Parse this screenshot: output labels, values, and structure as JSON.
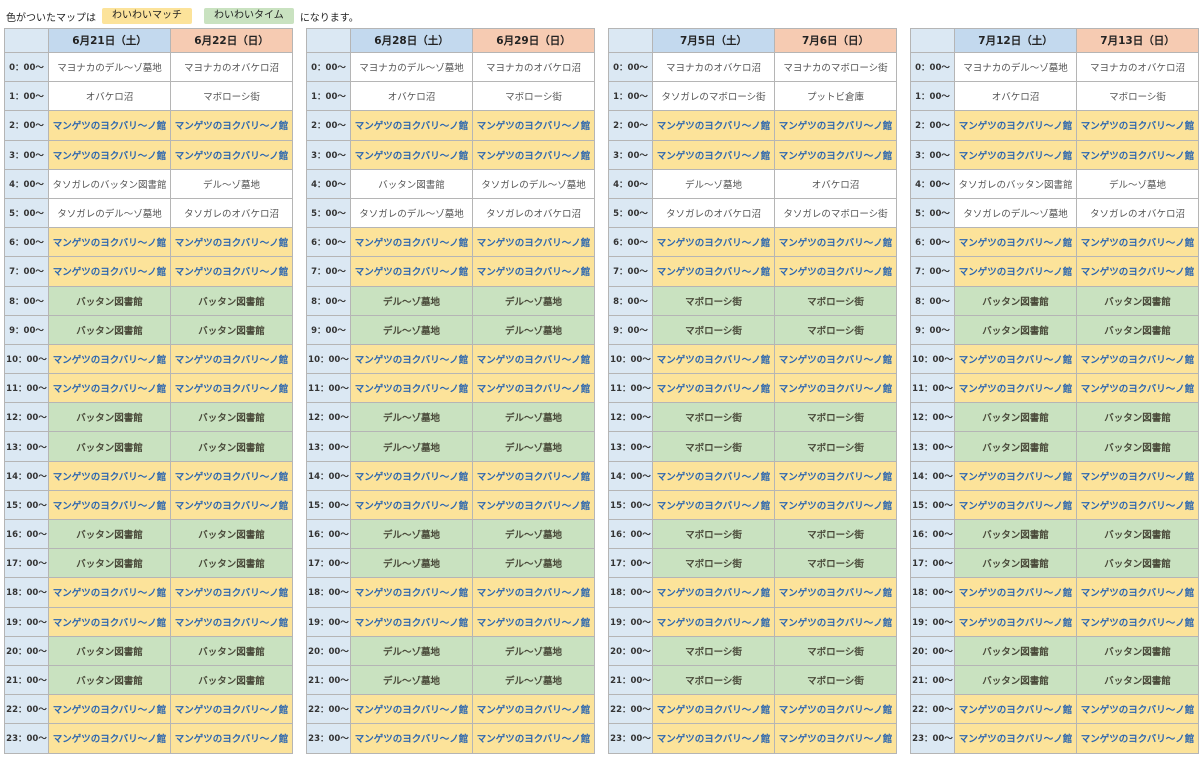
{
  "legend": {
    "prefix": "色がついたマップは",
    "match_label": "わいわいマッチ",
    "time_label": "わいわいタイム",
    "suffix": "になります。"
  },
  "colors": {
    "match": "#fce39a",
    "time": "#c9e2c0",
    "sat_header": "#c3d9ee",
    "sun_header": "#f6cbb2",
    "match_text": "#2b66b0"
  },
  "times": [
    "0：00～",
    "1：00～",
    "2：00～",
    "3：00～",
    "4：00～",
    "5：00～",
    "6：00～",
    "7：00～",
    "8：00～",
    "9：00～",
    "10：00～",
    "11：00～",
    "12：00～",
    "13：00～",
    "14：00～",
    "15：00～",
    "16：00～",
    "17：00～",
    "18：00～",
    "19：00～",
    "20：00～",
    "21：00～",
    "22：00～",
    "23：00～"
  ],
  "weeks": [
    {
      "days": [
        {
          "label": "6月21日（土）",
          "type": "sat",
          "cells": [
            {
              "text": "マヨナカのデル～ゾ墓地",
              "kind": "normal"
            },
            {
              "text": "オバケロ沼",
              "kind": "normal"
            },
            {
              "text": "マンゲツのヨクバリ～ノ館",
              "kind": "match"
            },
            {
              "text": "マンゲツのヨクバリ～ノ館",
              "kind": "match"
            },
            {
              "text": "タソガレのバッタン図書館",
              "kind": "normal"
            },
            {
              "text": "タソガレのデル～ゾ墓地",
              "kind": "normal"
            },
            {
              "text": "マンゲツのヨクバリ～ノ館",
              "kind": "match"
            },
            {
              "text": "マンゲツのヨクバリ～ノ館",
              "kind": "match"
            },
            {
              "text": "バッタン図書館",
              "kind": "time"
            },
            {
              "text": "バッタン図書館",
              "kind": "time"
            },
            {
              "text": "マンゲツのヨクバリ～ノ館",
              "kind": "match"
            },
            {
              "text": "マンゲツのヨクバリ～ノ館",
              "kind": "match"
            },
            {
              "text": "バッタン図書館",
              "kind": "time"
            },
            {
              "text": "バッタン図書館",
              "kind": "time"
            },
            {
              "text": "マンゲツのヨクバリ～ノ館",
              "kind": "match"
            },
            {
              "text": "マンゲツのヨクバリ～ノ館",
              "kind": "match"
            },
            {
              "text": "バッタン図書館",
              "kind": "time"
            },
            {
              "text": "バッタン図書館",
              "kind": "time"
            },
            {
              "text": "マンゲツのヨクバリ～ノ館",
              "kind": "match"
            },
            {
              "text": "マンゲツのヨクバリ～ノ館",
              "kind": "match"
            },
            {
              "text": "バッタン図書館",
              "kind": "time"
            },
            {
              "text": "バッタン図書館",
              "kind": "time"
            },
            {
              "text": "マンゲツのヨクバリ～ノ館",
              "kind": "match"
            },
            {
              "text": "マンゲツのヨクバリ～ノ館",
              "kind": "match"
            }
          ]
        },
        {
          "label": "6月22日（日）",
          "type": "sun",
          "cells": [
            {
              "text": "マヨナカのオバケロ沼",
              "kind": "normal"
            },
            {
              "text": "マボローシ街",
              "kind": "normal"
            },
            {
              "text": "マンゲツのヨクバリ～ノ館",
              "kind": "match"
            },
            {
              "text": "マンゲツのヨクバリ～ノ館",
              "kind": "match"
            },
            {
              "text": "デル～ゾ墓地",
              "kind": "normal"
            },
            {
              "text": "タソガレのオバケロ沼",
              "kind": "normal"
            },
            {
              "text": "マンゲツのヨクバリ～ノ館",
              "kind": "match"
            },
            {
              "text": "マンゲツのヨクバリ～ノ館",
              "kind": "match"
            },
            {
              "text": "バッタン図書館",
              "kind": "time"
            },
            {
              "text": "バッタン図書館",
              "kind": "time"
            },
            {
              "text": "マンゲツのヨクバリ～ノ館",
              "kind": "match"
            },
            {
              "text": "マンゲツのヨクバリ～ノ館",
              "kind": "match"
            },
            {
              "text": "バッタン図書館",
              "kind": "time"
            },
            {
              "text": "バッタン図書館",
              "kind": "time"
            },
            {
              "text": "マンゲツのヨクバリ～ノ館",
              "kind": "match"
            },
            {
              "text": "マンゲツのヨクバリ～ノ館",
              "kind": "match"
            },
            {
              "text": "バッタン図書館",
              "kind": "time"
            },
            {
              "text": "バッタン図書館",
              "kind": "time"
            },
            {
              "text": "マンゲツのヨクバリ～ノ館",
              "kind": "match"
            },
            {
              "text": "マンゲツのヨクバリ～ノ館",
              "kind": "match"
            },
            {
              "text": "バッタン図書館",
              "kind": "time"
            },
            {
              "text": "バッタン図書館",
              "kind": "time"
            },
            {
              "text": "マンゲツのヨクバリ～ノ館",
              "kind": "match"
            },
            {
              "text": "マンゲツのヨクバリ～ノ館",
              "kind": "match"
            }
          ]
        }
      ]
    },
    {
      "days": [
        {
          "label": "6月28日（土）",
          "type": "sat",
          "cells": [
            {
              "text": "マヨナカのデル～ゾ墓地",
              "kind": "normal"
            },
            {
              "text": "オバケロ沼",
              "kind": "normal"
            },
            {
              "text": "マンゲツのヨクバリ～ノ館",
              "kind": "match"
            },
            {
              "text": "マンゲツのヨクバリ～ノ館",
              "kind": "match"
            },
            {
              "text": "バッタン図書館",
              "kind": "normal"
            },
            {
              "text": "タソガレのデル～ゾ墓地",
              "kind": "normal"
            },
            {
              "text": "マンゲツのヨクバリ～ノ館",
              "kind": "match"
            },
            {
              "text": "マンゲツのヨクバリ～ノ館",
              "kind": "match"
            },
            {
              "text": "デル～ゾ墓地",
              "kind": "time"
            },
            {
              "text": "デル～ゾ墓地",
              "kind": "time"
            },
            {
              "text": "マンゲツのヨクバリ～ノ館",
              "kind": "match"
            },
            {
              "text": "マンゲツのヨクバリ～ノ館",
              "kind": "match"
            },
            {
              "text": "デル～ゾ墓地",
              "kind": "time"
            },
            {
              "text": "デル～ゾ墓地",
              "kind": "time"
            },
            {
              "text": "マンゲツのヨクバリ～ノ館",
              "kind": "match"
            },
            {
              "text": "マンゲツのヨクバリ～ノ館",
              "kind": "match"
            },
            {
              "text": "デル～ゾ墓地",
              "kind": "time"
            },
            {
              "text": "デル～ゾ墓地",
              "kind": "time"
            },
            {
              "text": "マンゲツのヨクバリ～ノ館",
              "kind": "match"
            },
            {
              "text": "マンゲツのヨクバリ～ノ館",
              "kind": "match"
            },
            {
              "text": "デル～ゾ墓地",
              "kind": "time"
            },
            {
              "text": "デル～ゾ墓地",
              "kind": "time"
            },
            {
              "text": "マンゲツのヨクバリ～ノ館",
              "kind": "match"
            },
            {
              "text": "マンゲツのヨクバリ～ノ館",
              "kind": "match"
            }
          ]
        },
        {
          "label": "6月29日（日）",
          "type": "sun",
          "cells": [
            {
              "text": "マヨナカのオバケロ沼",
              "kind": "normal"
            },
            {
              "text": "マボローシ街",
              "kind": "normal"
            },
            {
              "text": "マンゲツのヨクバリ～ノ館",
              "kind": "match"
            },
            {
              "text": "マンゲツのヨクバリ～ノ館",
              "kind": "match"
            },
            {
              "text": "タソガレのデル～ゾ墓地",
              "kind": "normal"
            },
            {
              "text": "タソガレのオバケロ沼",
              "kind": "normal"
            },
            {
              "text": "マンゲツのヨクバリ～ノ館",
              "kind": "match"
            },
            {
              "text": "マンゲツのヨクバリ～ノ館",
              "kind": "match"
            },
            {
              "text": "デル～ゾ墓地",
              "kind": "time"
            },
            {
              "text": "デル～ゾ墓地",
              "kind": "time"
            },
            {
              "text": "マンゲツのヨクバリ～ノ館",
              "kind": "match"
            },
            {
              "text": "マンゲツのヨクバリ～ノ館",
              "kind": "match"
            },
            {
              "text": "デル～ゾ墓地",
              "kind": "time"
            },
            {
              "text": "デル～ゾ墓地",
              "kind": "time"
            },
            {
              "text": "マンゲツのヨクバリ～ノ館",
              "kind": "match"
            },
            {
              "text": "マンゲツのヨクバリ～ノ館",
              "kind": "match"
            },
            {
              "text": "デル～ゾ墓地",
              "kind": "time"
            },
            {
              "text": "デル～ゾ墓地",
              "kind": "time"
            },
            {
              "text": "マンゲツのヨクバリ～ノ館",
              "kind": "match"
            },
            {
              "text": "マンゲツのヨクバリ～ノ館",
              "kind": "match"
            },
            {
              "text": "デル～ゾ墓地",
              "kind": "time"
            },
            {
              "text": "デル～ゾ墓地",
              "kind": "time"
            },
            {
              "text": "マンゲツのヨクバリ～ノ館",
              "kind": "match"
            },
            {
              "text": "マンゲツのヨクバリ～ノ館",
              "kind": "match"
            }
          ]
        }
      ]
    },
    {
      "days": [
        {
          "label": "7月5日（土）",
          "type": "sat",
          "cells": [
            {
              "text": "マヨナカのオバケロ沼",
              "kind": "normal"
            },
            {
              "text": "タソガレのマボローシ街",
              "kind": "normal"
            },
            {
              "text": "マンゲツのヨクバリ～ノ館",
              "kind": "match"
            },
            {
              "text": "マンゲツのヨクバリ～ノ館",
              "kind": "match"
            },
            {
              "text": "デル～ゾ墓地",
              "kind": "normal"
            },
            {
              "text": "タソガレのオバケロ沼",
              "kind": "normal"
            },
            {
              "text": "マンゲツのヨクバリ～ノ館",
              "kind": "match"
            },
            {
              "text": "マンゲツのヨクバリ～ノ館",
              "kind": "match"
            },
            {
              "text": "マボローシ街",
              "kind": "time"
            },
            {
              "text": "マボローシ街",
              "kind": "time"
            },
            {
              "text": "マンゲツのヨクバリ～ノ館",
              "kind": "match"
            },
            {
              "text": "マンゲツのヨクバリ～ノ館",
              "kind": "match"
            },
            {
              "text": "マボローシ街",
              "kind": "time"
            },
            {
              "text": "マボローシ街",
              "kind": "time"
            },
            {
              "text": "マンゲツのヨクバリ～ノ館",
              "kind": "match"
            },
            {
              "text": "マンゲツのヨクバリ～ノ館",
              "kind": "match"
            },
            {
              "text": "マボローシ街",
              "kind": "time"
            },
            {
              "text": "マボローシ街",
              "kind": "time"
            },
            {
              "text": "マンゲツのヨクバリ～ノ館",
              "kind": "match"
            },
            {
              "text": "マンゲツのヨクバリ～ノ館",
              "kind": "match"
            },
            {
              "text": "マボローシ街",
              "kind": "time"
            },
            {
              "text": "マボローシ街",
              "kind": "time"
            },
            {
              "text": "マンゲツのヨクバリ～ノ館",
              "kind": "match"
            },
            {
              "text": "マンゲツのヨクバリ～ノ館",
              "kind": "match"
            }
          ]
        },
        {
          "label": "7月6日（日）",
          "type": "sun",
          "cells": [
            {
              "text": "マヨナカのマボローシ街",
              "kind": "normal"
            },
            {
              "text": "プットビ倉庫",
              "kind": "normal"
            },
            {
              "text": "マンゲツのヨクバリ～ノ館",
              "kind": "match"
            },
            {
              "text": "マンゲツのヨクバリ～ノ館",
              "kind": "match"
            },
            {
              "text": "オバケロ沼",
              "kind": "normal"
            },
            {
              "text": "タソガレのマボローシ街",
              "kind": "normal"
            },
            {
              "text": "マンゲツのヨクバリ～ノ館",
              "kind": "match"
            },
            {
              "text": "マンゲツのヨクバリ～ノ館",
              "kind": "match"
            },
            {
              "text": "マボローシ街",
              "kind": "time"
            },
            {
              "text": "マボローシ街",
              "kind": "time"
            },
            {
              "text": "マンゲツのヨクバリ～ノ館",
              "kind": "match"
            },
            {
              "text": "マンゲツのヨクバリ～ノ館",
              "kind": "match"
            },
            {
              "text": "マボローシ街",
              "kind": "time"
            },
            {
              "text": "マボローシ街",
              "kind": "time"
            },
            {
              "text": "マンゲツのヨクバリ～ノ館",
              "kind": "match"
            },
            {
              "text": "マンゲツのヨクバリ～ノ館",
              "kind": "match"
            },
            {
              "text": "マボローシ街",
              "kind": "time"
            },
            {
              "text": "マボローシ街",
              "kind": "time"
            },
            {
              "text": "マンゲツのヨクバリ～ノ館",
              "kind": "match"
            },
            {
              "text": "マンゲツのヨクバリ～ノ館",
              "kind": "match"
            },
            {
              "text": "マボローシ街",
              "kind": "time"
            },
            {
              "text": "マボローシ街",
              "kind": "time"
            },
            {
              "text": "マンゲツのヨクバリ～ノ館",
              "kind": "match"
            },
            {
              "text": "マンゲツのヨクバリ～ノ館",
              "kind": "match"
            }
          ]
        }
      ]
    },
    {
      "days": [
        {
          "label": "7月12日（土）",
          "type": "sat",
          "cells": [
            {
              "text": "マヨナカのデル～ゾ墓地",
              "kind": "normal"
            },
            {
              "text": "オバケロ沼",
              "kind": "normal"
            },
            {
              "text": "マンゲツのヨクバリ～ノ館",
              "kind": "match"
            },
            {
              "text": "マンゲツのヨクバリ～ノ館",
              "kind": "match"
            },
            {
              "text": "タソガレのバッタン図書館",
              "kind": "normal"
            },
            {
              "text": "タソガレのデル～ゾ墓地",
              "kind": "normal"
            },
            {
              "text": "マンゲツのヨクバリ～ノ館",
              "kind": "match"
            },
            {
              "text": "マンゲツのヨクバリ～ノ館",
              "kind": "match"
            },
            {
              "text": "バッタン図書館",
              "kind": "time"
            },
            {
              "text": "バッタン図書館",
              "kind": "time"
            },
            {
              "text": "マンゲツのヨクバリ～ノ館",
              "kind": "match"
            },
            {
              "text": "マンゲツのヨクバリ～ノ館",
              "kind": "match"
            },
            {
              "text": "バッタン図書館",
              "kind": "time"
            },
            {
              "text": "バッタン図書館",
              "kind": "time"
            },
            {
              "text": "マンゲツのヨクバリ～ノ館",
              "kind": "match"
            },
            {
              "text": "マンゲツのヨクバリ～ノ館",
              "kind": "match"
            },
            {
              "text": "バッタン図書館",
              "kind": "time"
            },
            {
              "text": "バッタン図書館",
              "kind": "time"
            },
            {
              "text": "マンゲツのヨクバリ～ノ館",
              "kind": "match"
            },
            {
              "text": "マンゲツのヨクバリ～ノ館",
              "kind": "match"
            },
            {
              "text": "バッタン図書館",
              "kind": "time"
            },
            {
              "text": "バッタン図書館",
              "kind": "time"
            },
            {
              "text": "マンゲツのヨクバリ～ノ館",
              "kind": "match"
            },
            {
              "text": "マンゲツのヨクバリ～ノ館",
              "kind": "match"
            }
          ]
        },
        {
          "label": "7月13日（日）",
          "type": "sun",
          "cells": [
            {
              "text": "マヨナカのオバケロ沼",
              "kind": "normal"
            },
            {
              "text": "マボローシ街",
              "kind": "normal"
            },
            {
              "text": "マンゲツのヨクバリ～ノ館",
              "kind": "match"
            },
            {
              "text": "マンゲツのヨクバリ～ノ館",
              "kind": "match"
            },
            {
              "text": "デル～ゾ墓地",
              "kind": "normal"
            },
            {
              "text": "タソガレのオバケロ沼",
              "kind": "normal"
            },
            {
              "text": "マンゲツのヨクバリ～ノ館",
              "kind": "match"
            },
            {
              "text": "マンゲツのヨクバリ～ノ館",
              "kind": "match"
            },
            {
              "text": "バッタン図書館",
              "kind": "time"
            },
            {
              "text": "バッタン図書館",
              "kind": "time"
            },
            {
              "text": "マンゲツのヨクバリ～ノ館",
              "kind": "match"
            },
            {
              "text": "マンゲツのヨクバリ～ノ館",
              "kind": "match"
            },
            {
              "text": "バッタン図書館",
              "kind": "time"
            },
            {
              "text": "バッタン図書館",
              "kind": "time"
            },
            {
              "text": "マンゲツのヨクバリ～ノ館",
              "kind": "match"
            },
            {
              "text": "マンゲツのヨクバリ～ノ館",
              "kind": "match"
            },
            {
              "text": "バッタン図書館",
              "kind": "time"
            },
            {
              "text": "バッタン図書館",
              "kind": "time"
            },
            {
              "text": "マンゲツのヨクバリ～ノ館",
              "kind": "match"
            },
            {
              "text": "マンゲツのヨクバリ～ノ館",
              "kind": "match"
            },
            {
              "text": "バッタン図書館",
              "kind": "time"
            },
            {
              "text": "バッタン図書館",
              "kind": "time"
            },
            {
              "text": "マンゲツのヨクバリ～ノ館",
              "kind": "match"
            },
            {
              "text": "マンゲツのヨクバリ～ノ館",
              "kind": "match"
            }
          ]
        }
      ]
    }
  ]
}
